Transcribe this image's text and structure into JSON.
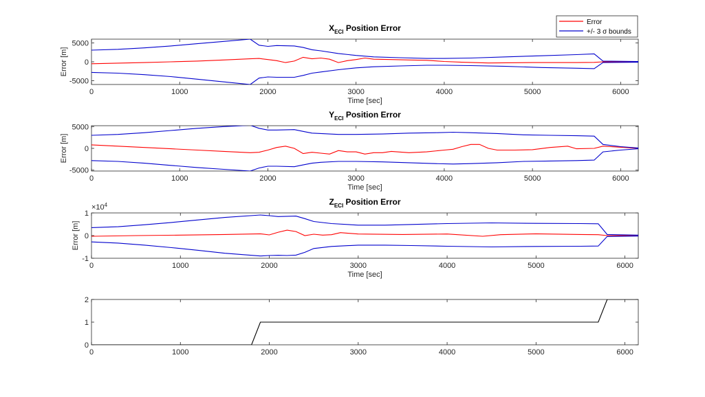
{
  "chart_data": [
    {
      "type": "line",
      "title": "X",
      "title_subscript": "ECI",
      "title_suffix": " Position Error",
      "xlabel": "Time [sec]",
      "ylabel": "Error [m]",
      "xlim": [
        0,
        6200
      ],
      "ylim": [
        -6000,
        6000
      ],
      "xticks": [
        0,
        1000,
        2000,
        3000,
        4000,
        5000,
        6000
      ],
      "yticks": [
        -5000,
        0,
        5000
      ],
      "ytick_labels": [
        "-5000",
        "0",
        "5000"
      ],
      "legend": {
        "location": "top-right",
        "entries": [
          "Error",
          "+/- 3 σ bounds"
        ]
      },
      "series": [
        {
          "name": "Error",
          "color": "#ff0000",
          "x": [
            0,
            300,
            600,
            900,
            1200,
            1500,
            1800,
            1900,
            2000,
            2100,
            2200,
            2300,
            2400,
            2500,
            2600,
            2700,
            2800,
            2900,
            3000,
            3100,
            3200,
            3400,
            3600,
            3800,
            4000,
            4200,
            4500,
            5000,
            5500,
            5700,
            5800,
            6200
          ],
          "y": [
            -500,
            -350,
            -200,
            0,
            200,
            500,
            800,
            900,
            600,
            300,
            -200,
            200,
            1200,
            800,
            1000,
            700,
            -200,
            300,
            600,
            1000,
            700,
            600,
            500,
            400,
            100,
            -100,
            -300,
            -200,
            -200,
            -150,
            0,
            0
          ]
        },
        {
          "name": "+/- 3 σ bounds",
          "color": "#0000cd",
          "x": [
            0,
            300,
            600,
            900,
            1200,
            1500,
            1800,
            1900,
            2000,
            2100,
            2300,
            2400,
            2500,
            2600,
            2800,
            3000,
            3200,
            3500,
            3800,
            4000,
            4300,
            4700,
            5100,
            5500,
            5700,
            5800,
            6200
          ],
          "y": [
            3100,
            3300,
            3700,
            4200,
            4800,
            5400,
            6000,
            4400,
            4100,
            4300,
            4200,
            3800,
            3200,
            2900,
            2200,
            1700,
            1300,
            1100,
            900,
            900,
            1000,
            1300,
            1600,
            1900,
            2100,
            200,
            100
          ]
        },
        {
          "color": "#0000cd",
          "x": [
            0,
            300,
            600,
            900,
            1200,
            1500,
            1800,
            1900,
            2000,
            2100,
            2300,
            2400,
            2500,
            2600,
            2800,
            3000,
            3200,
            3500,
            3800,
            4000,
            4300,
            4700,
            5100,
            5500,
            5700,
            5800,
            6200
          ],
          "y": [
            -2800,
            -3000,
            -3400,
            -3900,
            -4600,
            -5300,
            -6000,
            -4300,
            -4000,
            -4100,
            -4100,
            -3600,
            -3000,
            -2700,
            -2100,
            -1600,
            -1300,
            -1100,
            -900,
            -900,
            -1000,
            -1200,
            -1500,
            -1700,
            -1800,
            -200,
            -100
          ]
        }
      ]
    },
    {
      "type": "line",
      "title": "Y",
      "title_subscript": "ECI",
      "title_suffix": " Position Error",
      "xlabel": "Time [sec]",
      "ylabel": "Error [m]",
      "xlim": [
        0,
        6200
      ],
      "ylim": [
        -5200,
        5200
      ],
      "xticks": [
        0,
        1000,
        2000,
        3000,
        4000,
        5000,
        6000
      ],
      "yticks": [
        -5000,
        0,
        5000
      ],
      "ytick_labels": [
        "-5000",
        "0",
        "5000"
      ],
      "series": [
        {
          "name": "Error",
          "color": "#ff0000",
          "x": [
            0,
            300,
            600,
            900,
            1200,
            1500,
            1800,
            1900,
            2000,
            2100,
            2200,
            2300,
            2400,
            2500,
            2600,
            2700,
            2800,
            2900,
            3000,
            3100,
            3200,
            3300,
            3400,
            3600,
            3800,
            4000,
            4100,
            4200,
            4300,
            4400,
            4500,
            4600,
            4800,
            5000,
            5200,
            5400,
            5500,
            5700,
            5800,
            6200
          ],
          "y": [
            800,
            500,
            200,
            -100,
            -400,
            -700,
            -1000,
            -900,
            -400,
            200,
            500,
            0,
            -1200,
            -900,
            -1100,
            -1300,
            -500,
            -800,
            -800,
            -1300,
            -1000,
            -1000,
            -700,
            -1000,
            -800,
            -400,
            -200,
            400,
            900,
            900,
            0,
            -400,
            -400,
            -300,
            200,
            500,
            -100,
            0,
            500,
            0
          ]
        },
        {
          "name": "+/- 3 σ bounds",
          "color": "#0000cd",
          "x": [
            0,
            300,
            600,
            900,
            1200,
            1500,
            1800,
            1900,
            2000,
            2100,
            2300,
            2400,
            2500,
            2600,
            2800,
            3000,
            3300,
            3600,
            3900,
            4100,
            4300,
            4600,
            4900,
            5200,
            5500,
            5700,
            5800,
            6000,
            6200
          ],
          "y": [
            3000,
            3200,
            3600,
            4100,
            4600,
            5000,
            5300,
            4600,
            4200,
            4200,
            4300,
            3900,
            3500,
            3400,
            3200,
            3200,
            3300,
            3500,
            3600,
            3700,
            3600,
            3400,
            3100,
            3000,
            2900,
            2800,
            900,
            400,
            100
          ]
        },
        {
          "color": "#0000cd",
          "x": [
            0,
            300,
            600,
            900,
            1200,
            1500,
            1800,
            1900,
            2000,
            2100,
            2300,
            2400,
            2500,
            2600,
            2800,
            3000,
            3300,
            3600,
            3900,
            4100,
            4300,
            4600,
            4900,
            5200,
            5500,
            5700,
            5800,
            6000,
            6200
          ],
          "y": [
            -2800,
            -3000,
            -3400,
            -3900,
            -4400,
            -4800,
            -5200,
            -4500,
            -4100,
            -4100,
            -4200,
            -3800,
            -3400,
            -3200,
            -3000,
            -3000,
            -3100,
            -3300,
            -3500,
            -3600,
            -3500,
            -3300,
            -3000,
            -2900,
            -2800,
            -2700,
            -800,
            -400,
            -100
          ]
        }
      ]
    },
    {
      "type": "line",
      "title": "Z",
      "title_subscript": "ECI",
      "title_suffix": " Position Error",
      "xlabel": "Time [sec]",
      "ylabel": "Error [m]",
      "xlim": [
        0,
        6150
      ],
      "ylim": [
        -10000,
        10000
      ],
      "xticks": [
        0,
        1000,
        2000,
        3000,
        4000,
        5000,
        6000
      ],
      "yticks": [
        -10000,
        0,
        10000
      ],
      "ytick_labels": [
        "-1",
        "0",
        "1"
      ],
      "exponent_label": "×10",
      "exponent_power": "4",
      "series": [
        {
          "name": "Error",
          "color": "#ff0000",
          "x": [
            0,
            500,
            1000,
            1500,
            1900,
            2000,
            2100,
            2200,
            2300,
            2400,
            2500,
            2600,
            2700,
            2800,
            3000,
            3500,
            4000,
            4400,
            4600,
            5000,
            5500,
            5700,
            5800,
            6150
          ],
          "y": [
            -300,
            0,
            200,
            500,
            800,
            300,
            1500,
            2400,
            1800,
            0,
            600,
            200,
            400,
            1300,
            700,
            500,
            700,
            -300,
            400,
            800,
            500,
            400,
            0,
            0
          ]
        },
        {
          "name": "+/- 3 σ bounds",
          "color": "#0000cd",
          "x": [
            0,
            300,
            600,
            900,
            1200,
            1500,
            1900,
            2000,
            2100,
            2200,
            2300,
            2400,
            2500,
            2700,
            3000,
            3300,
            3600,
            4000,
            4500,
            5000,
            5500,
            5700,
            5800,
            6150
          ],
          "y": [
            3500,
            3900,
            4800,
            5800,
            6900,
            8000,
            9100,
            8800,
            8400,
            8500,
            8600,
            7500,
            6200,
            5300,
            4600,
            4600,
            4900,
            5300,
            5600,
            5400,
            5300,
            5200,
            500,
            200
          ]
        },
        {
          "color": "#0000cd",
          "x": [
            0,
            300,
            600,
            900,
            1200,
            1500,
            1900,
            2000,
            2100,
            2200,
            2300,
            2400,
            2500,
            2700,
            3000,
            3300,
            3600,
            4000,
            4500,
            5000,
            5500,
            5700,
            5800,
            6150
          ],
          "y": [
            -2800,
            -3300,
            -4200,
            -5300,
            -6500,
            -7800,
            -9000,
            -8800,
            -8700,
            -8800,
            -8600,
            -7400,
            -5700,
            -4800,
            -4200,
            -4200,
            -4400,
            -4700,
            -5000,
            -4800,
            -4700,
            -4600,
            -400,
            -200
          ]
        }
      ]
    },
    {
      "type": "line",
      "title": "",
      "xlabel": "",
      "ylabel": "",
      "xlim": [
        0,
        6150
      ],
      "ylim": [
        0,
        2
      ],
      "xticks": [
        0,
        1000,
        2000,
        3000,
        4000,
        5000,
        6000
      ],
      "yticks": [
        0,
        1,
        2
      ],
      "ytick_labels": [
        "0",
        "1",
        "2"
      ],
      "series": [
        {
          "color": "#000000",
          "x": [
            0,
            1800,
            1900,
            5700,
            5800,
            6150
          ],
          "y": [
            0,
            0,
            1,
            1,
            2,
            2
          ]
        }
      ]
    }
  ],
  "layout_legend": {
    "error_label": "Error",
    "bounds_label": "+/- 3 σ bounds"
  }
}
